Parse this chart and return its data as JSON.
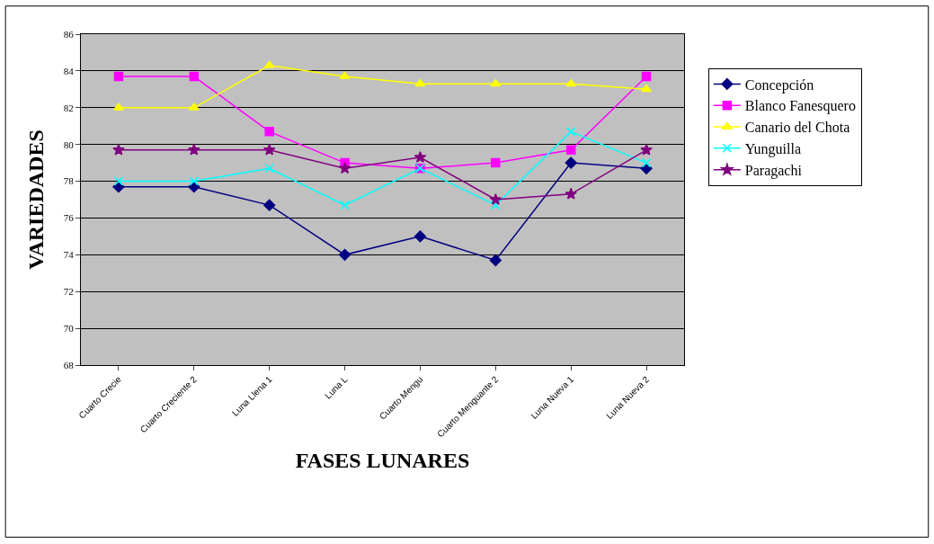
{
  "chart_data": {
    "type": "line",
    "xlabel": "FASES LUNARES",
    "ylabel": "VARIEDADES",
    "categories": [
      "Cuarto Crecie",
      "Cuarto Creciente 2",
      "Luna Llena 1",
      "Luna L",
      "Cuarto Mengu",
      "Cuarto Menguante 2",
      "Luna Nueva 1",
      "Luna Nueva 2"
    ],
    "series": [
      {
        "name": "Concepción",
        "color": "#000080",
        "marker": "diamond",
        "values": [
          77.7,
          77.7,
          76.7,
          74.0,
          75.0,
          73.7,
          79.0,
          78.7
        ]
      },
      {
        "name": "Blanco Fanesquero",
        "color": "#ff00ff",
        "marker": "square",
        "values": [
          83.7,
          83.7,
          80.7,
          79.0,
          78.7,
          79.0,
          79.7,
          83.7
        ]
      },
      {
        "name": "Canario del Chota",
        "color": "#ffff00",
        "marker": "triangle",
        "values": [
          82.0,
          82.0,
          84.3,
          83.7,
          83.3,
          83.3,
          83.3,
          83.0
        ]
      },
      {
        "name": "Yunguilla",
        "color": "#00ffff",
        "marker": "cross",
        "values": [
          78.0,
          78.0,
          78.7,
          76.7,
          78.7,
          76.7,
          80.7,
          79.0
        ]
      },
      {
        "name": "Paragachi",
        "color": "#800080",
        "marker": "star",
        "values": [
          79.7,
          79.7,
          79.7,
          78.7,
          79.3,
          77.0,
          77.3,
          79.7
        ]
      }
    ],
    "ylim": [
      68,
      86
    ],
    "yticks": [
      68,
      70,
      72,
      74,
      76,
      78,
      80,
      82,
      84,
      86
    ],
    "grid": "y",
    "legend": "right",
    "line_style": "solid"
  }
}
